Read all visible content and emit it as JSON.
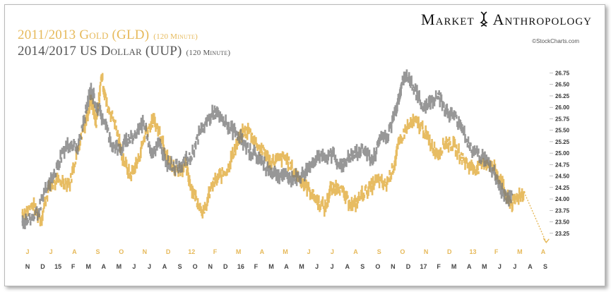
{
  "header": {
    "gold_title": "2011/2013 Gold (GLD)",
    "gold_interval": "(120 Minute)",
    "usd_title": "2014/2017 US Dollar (UUP)",
    "usd_interval": "(120 Minute)",
    "brand_left": "Market",
    "brand_right": "Anthropology",
    "credit": "©StockCharts.com"
  },
  "chart_data": {
    "type": "line",
    "title": "2011/2013 Gold (GLD) (120 Minute) / 2014/2017 US Dollar (UUP) (120 Minute)",
    "ylabel": "",
    "ylim": [
      23.0,
      26.85
    ],
    "y_ticks": [
      23.25,
      23.5,
      23.75,
      24.0,
      24.25,
      24.5,
      24.75,
      25.0,
      25.25,
      25.5,
      25.75,
      26.0,
      26.25,
      26.5,
      26.75
    ],
    "x_months_top": [
      "J",
      "J",
      "A",
      "S",
      "O",
      "N",
      "D",
      "12",
      "F",
      "M",
      "A",
      "M",
      "J",
      "J",
      "A",
      "S",
      "O",
      "N",
      "D",
      "13",
      "F",
      "M",
      "A"
    ],
    "x_months_bottom": [
      "N",
      "D",
      "15",
      "F",
      "M",
      "A",
      "M",
      "J",
      "J",
      "A",
      "S",
      "O",
      "N",
      "D",
      "16",
      "F",
      "M",
      "A",
      "M",
      "J",
      "J",
      "A",
      "S",
      "O",
      "N",
      "D",
      "17",
      "F",
      "M",
      "A",
      "M",
      "J",
      "J",
      "A",
      "S"
    ],
    "projection": {
      "from": [
        0.953,
        24.15
      ],
      "to": [
        0.995,
        23.05
      ]
    },
    "colors": {
      "gold": "#e6b95a",
      "usd": "#7a7a7a",
      "projection": "#e6b95a"
    },
    "series": [
      {
        "name": "2011/2013 Gold (GLD)",
        "points": [
          [
            0.0,
            23.7
          ],
          [
            0.02,
            23.85
          ],
          [
            0.035,
            23.55
          ],
          [
            0.05,
            24.25
          ],
          [
            0.07,
            24.4
          ],
          [
            0.09,
            24.35
          ],
          [
            0.105,
            25.1
          ],
          [
            0.12,
            25.7
          ],
          [
            0.13,
            26.2
          ],
          [
            0.14,
            25.6
          ],
          [
            0.15,
            26.7
          ],
          [
            0.16,
            26.05
          ],
          [
            0.175,
            25.7
          ],
          [
            0.19,
            24.9
          ],
          [
            0.205,
            24.5
          ],
          [
            0.22,
            24.85
          ],
          [
            0.235,
            25.5
          ],
          [
            0.25,
            25.7
          ],
          [
            0.265,
            25.35
          ],
          [
            0.275,
            24.9
          ],
          [
            0.29,
            24.65
          ],
          [
            0.31,
            24.7
          ],
          [
            0.32,
            24.3
          ],
          [
            0.33,
            24.0
          ],
          [
            0.345,
            23.7
          ],
          [
            0.36,
            24.3
          ],
          [
            0.375,
            24.5
          ],
          [
            0.39,
            24.65
          ],
          [
            0.4,
            25.0
          ],
          [
            0.415,
            25.4
          ],
          [
            0.43,
            25.5
          ],
          [
            0.445,
            25.2
          ],
          [
            0.46,
            25.0
          ],
          [
            0.47,
            24.8
          ],
          [
            0.485,
            24.85
          ],
          [
            0.5,
            24.9
          ],
          [
            0.515,
            24.6
          ],
          [
            0.53,
            24.4
          ],
          [
            0.545,
            24.2
          ],
          [
            0.56,
            23.95
          ],
          [
            0.575,
            23.8
          ],
          [
            0.585,
            24.2
          ],
          [
            0.6,
            24.3
          ],
          [
            0.615,
            24.0
          ],
          [
            0.63,
            23.85
          ],
          [
            0.645,
            24.1
          ],
          [
            0.66,
            24.25
          ],
          [
            0.675,
            24.4
          ],
          [
            0.69,
            24.3
          ],
          [
            0.705,
            24.7
          ],
          [
            0.715,
            25.2
          ],
          [
            0.73,
            25.55
          ],
          [
            0.745,
            25.7
          ],
          [
            0.76,
            25.55
          ],
          [
            0.775,
            25.2
          ],
          [
            0.79,
            25.0
          ],
          [
            0.805,
            25.25
          ],
          [
            0.82,
            25.15
          ],
          [
            0.835,
            24.9
          ],
          [
            0.85,
            24.7
          ],
          [
            0.865,
            24.65
          ],
          [
            0.88,
            24.8
          ],
          [
            0.895,
            24.7
          ],
          [
            0.91,
            24.4
          ],
          [
            0.92,
            24.0
          ],
          [
            0.93,
            23.9
          ],
          [
            0.94,
            24.05
          ],
          [
            0.953,
            24.15
          ]
        ]
      },
      {
        "name": "2014/2017 US Dollar (UUP)",
        "points": [
          [
            0.0,
            23.5
          ],
          [
            0.015,
            23.55
          ],
          [
            0.03,
            23.75
          ],
          [
            0.045,
            24.2
          ],
          [
            0.06,
            24.5
          ],
          [
            0.075,
            25.0
          ],
          [
            0.09,
            25.2
          ],
          [
            0.105,
            25.1
          ],
          [
            0.12,
            25.9
          ],
          [
            0.13,
            26.4
          ],
          [
            0.14,
            26.05
          ],
          [
            0.155,
            25.7
          ],
          [
            0.17,
            25.2
          ],
          [
            0.185,
            25.05
          ],
          [
            0.2,
            25.3
          ],
          [
            0.215,
            25.4
          ],
          [
            0.23,
            25.7
          ],
          [
            0.245,
            25.0
          ],
          [
            0.26,
            25.2
          ],
          [
            0.275,
            24.8
          ],
          [
            0.29,
            24.7
          ],
          [
            0.305,
            24.8
          ],
          [
            0.32,
            24.9
          ],
          [
            0.335,
            25.4
          ],
          [
            0.35,
            25.7
          ],
          [
            0.365,
            25.9
          ],
          [
            0.38,
            25.7
          ],
          [
            0.395,
            25.55
          ],
          [
            0.41,
            25.4
          ],
          [
            0.425,
            25.1
          ],
          [
            0.44,
            25.0
          ],
          [
            0.455,
            24.8
          ],
          [
            0.47,
            24.6
          ],
          [
            0.485,
            24.55
          ],
          [
            0.5,
            24.5
          ],
          [
            0.515,
            24.45
          ],
          [
            0.53,
            24.5
          ],
          [
            0.545,
            24.7
          ],
          [
            0.56,
            24.95
          ],
          [
            0.575,
            24.85
          ],
          [
            0.59,
            25.0
          ],
          [
            0.605,
            24.7
          ],
          [
            0.62,
            24.9
          ],
          [
            0.635,
            25.0
          ],
          [
            0.65,
            25.1
          ],
          [
            0.665,
            24.8
          ],
          [
            0.68,
            25.35
          ],
          [
            0.695,
            25.4
          ],
          [
            0.71,
            26.0
          ],
          [
            0.72,
            26.5
          ],
          [
            0.73,
            26.7
          ],
          [
            0.745,
            26.4
          ],
          [
            0.76,
            26.0
          ],
          [
            0.775,
            26.1
          ],
          [
            0.79,
            26.3
          ],
          [
            0.805,
            25.9
          ],
          [
            0.82,
            25.8
          ],
          [
            0.835,
            25.6
          ],
          [
            0.85,
            25.1
          ],
          [
            0.865,
            25.0
          ],
          [
            0.88,
            24.85
          ],
          [
            0.895,
            24.6
          ],
          [
            0.91,
            24.2
          ],
          [
            0.92,
            24.0
          ],
          [
            0.93,
            24.1
          ]
        ]
      }
    ]
  }
}
